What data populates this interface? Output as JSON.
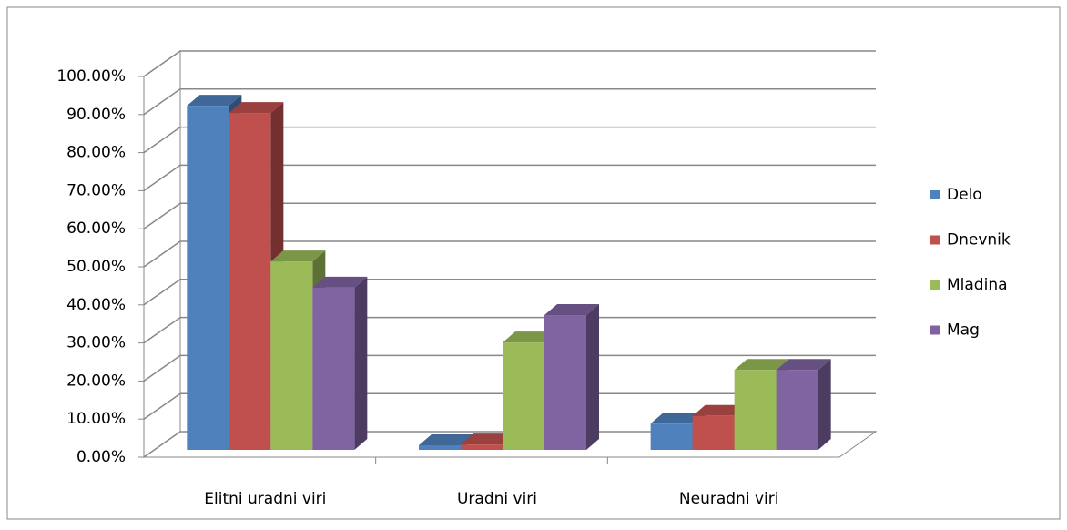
{
  "chart_data": {
    "type": "bar3d",
    "categories": [
      "Elitni uradni viri",
      "Uradni viri",
      "Neuradni viri"
    ],
    "series": [
      {
        "name": "Delo",
        "color": "#4f81bd",
        "values": [
          90.4,
          1.2,
          6.9
        ]
      },
      {
        "name": "Dnevnik",
        "color": "#c0504d",
        "values": [
          88.5,
          1.4,
          8.9
        ]
      },
      {
        "name": "Mladina",
        "color": "#9bbb59",
        "values": [
          49.5,
          28.2,
          21
        ]
      },
      {
        "name": "Mag",
        "color": "#8064a2",
        "values": [
          42.6,
          35.4,
          21
        ]
      }
    ],
    "ylim": [
      0,
      100
    ],
    "yticks": [
      {
        "value": 0,
        "label": "0.00%"
      },
      {
        "value": 10,
        "label": "10.00%"
      },
      {
        "value": 20,
        "label": "20.00%"
      },
      {
        "value": 30,
        "label": "30.00%"
      },
      {
        "value": 40,
        "label": "40.00%"
      },
      {
        "value": 50,
        "label": "50.00%"
      },
      {
        "value": 60,
        "label": "60.00%"
      },
      {
        "value": 70,
        "label": "70.00%"
      },
      {
        "value": 80,
        "label": "80.00%"
      },
      {
        "value": 90,
        "label": "90.00%"
      },
      {
        "value": 100,
        "label": "100.00%"
      }
    ],
    "grid": true,
    "legend": "right"
  }
}
